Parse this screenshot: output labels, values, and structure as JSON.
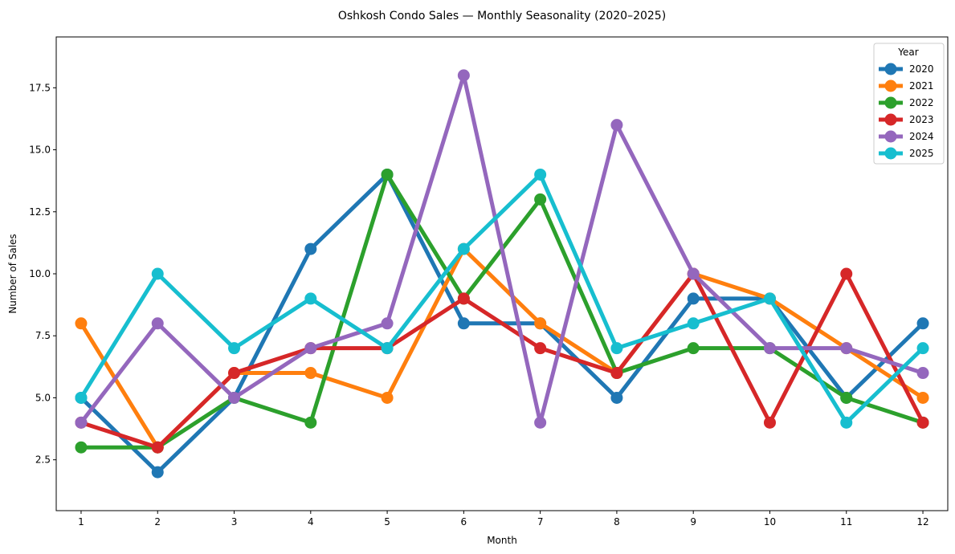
{
  "chart_data": {
    "type": "line",
    "title": "Oshkosh Condo Sales — Monthly Seasonality (2020–2025)",
    "xlabel": "Month",
    "ylabel": "Number of Sales",
    "x": [
      1,
      2,
      3,
      4,
      5,
      6,
      7,
      8,
      9,
      10,
      11,
      12
    ],
    "xlim": [
      0.675,
      12.325
    ],
    "ylim": [
      0.45,
      19.55
    ],
    "yticks": [
      2.5,
      5.0,
      7.5,
      10.0,
      12.5,
      15.0,
      17.5
    ],
    "ytick_labels": [
      "2.5",
      "5.0",
      "7.5",
      "10.0",
      "12.5",
      "15.0",
      "17.5"
    ],
    "xtick_labels": [
      "1",
      "2",
      "3",
      "4",
      "5",
      "6",
      "7",
      "8",
      "9",
      "10",
      "11",
      "12"
    ],
    "grid": false,
    "legend": {
      "title": "Year",
      "placement": "top-right"
    },
    "series": [
      {
        "name": "2020",
        "color": "#1f77b4",
        "values": [
          5,
          2,
          5,
          11,
          14,
          8,
          8,
          5,
          9,
          9,
          5,
          8
        ]
      },
      {
        "name": "2021",
        "color": "#ff7f0e",
        "values": [
          8,
          3,
          6,
          6,
          5,
          11,
          8,
          6,
          10,
          9,
          7,
          5
        ]
      },
      {
        "name": "2022",
        "color": "#2ca02c",
        "values": [
          3,
          3,
          5,
          4,
          14,
          9,
          13,
          6,
          7,
          7,
          5,
          4
        ]
      },
      {
        "name": "2023",
        "color": "#d62728",
        "values": [
          4,
          3,
          6,
          7,
          7,
          9,
          7,
          6,
          10,
          4,
          10,
          4
        ]
      },
      {
        "name": "2024",
        "color": "#9467bd",
        "values": [
          4,
          8,
          5,
          7,
          8,
          18,
          4,
          16,
          10,
          7,
          7,
          6
        ]
      },
      {
        "name": "2025",
        "color": "#17becf",
        "values": [
          5,
          10,
          7,
          9,
          7,
          11,
          14,
          7,
          8,
          9,
          4,
          7
        ]
      }
    ]
  }
}
